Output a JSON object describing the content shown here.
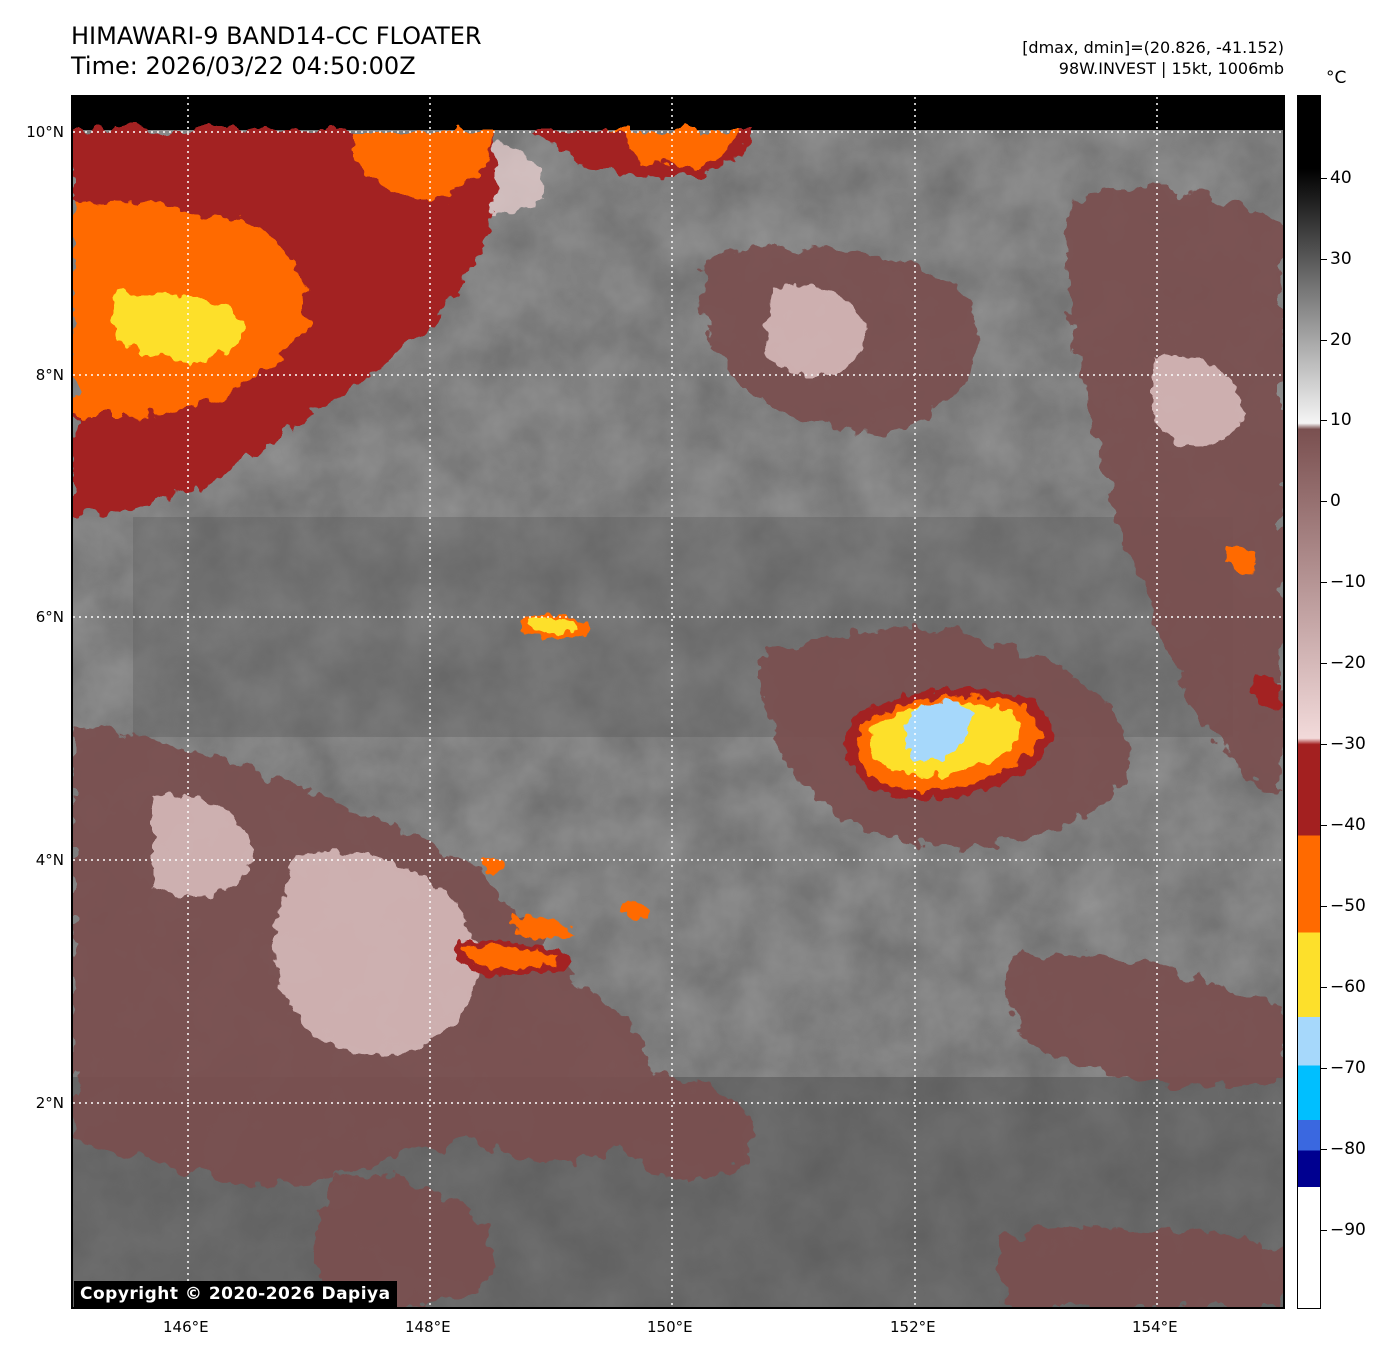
{
  "header": {
    "title_line1": "HIMAWARI-9 BAND14-CC FLOATER",
    "title_line2": "Time: 2026/03/22 04:50:00Z",
    "info_line1": "[dmax, dmin]=(20.826, -41.152)",
    "info_line2": "98W.INVEST | 15kt, 1006mb"
  },
  "map": {
    "lon_labels": [
      "146°E",
      "148°E",
      "150°E",
      "152°E",
      "154°E"
    ],
    "lat_labels": [
      "10°N",
      "8°N",
      "6°N",
      "4°N",
      "2°N"
    ],
    "lon_range": [
      145.05,
      155.0
    ],
    "lat_range": [
      0.5,
      10.3
    ],
    "copyright": "Copyright © 2020-2026 Dapiya"
  },
  "colorbar": {
    "unit": "°C",
    "tick_labels": [
      "40",
      "30",
      "20",
      "10",
      "0",
      "−10",
      "−20",
      "−30",
      "−40",
      "−50",
      "−60",
      "−70",
      "−80",
      "−90"
    ],
    "range": [
      -100,
      50
    ],
    "colors": {
      "warm_high": "#000000",
      "warm_mid": "#777777",
      "warm_low": "#f5f5f5",
      "brown": "#7a5050",
      "pink": "#f2dada",
      "red": "#a32020",
      "orange": "#ff6a00",
      "yellow": "#fde02b",
      "light_blue": "#a6d8fb",
      "cyan": "#00bfff",
      "blue": "#3a68e0",
      "dark_blue": "#000090",
      "white": "#ffffff"
    }
  }
}
